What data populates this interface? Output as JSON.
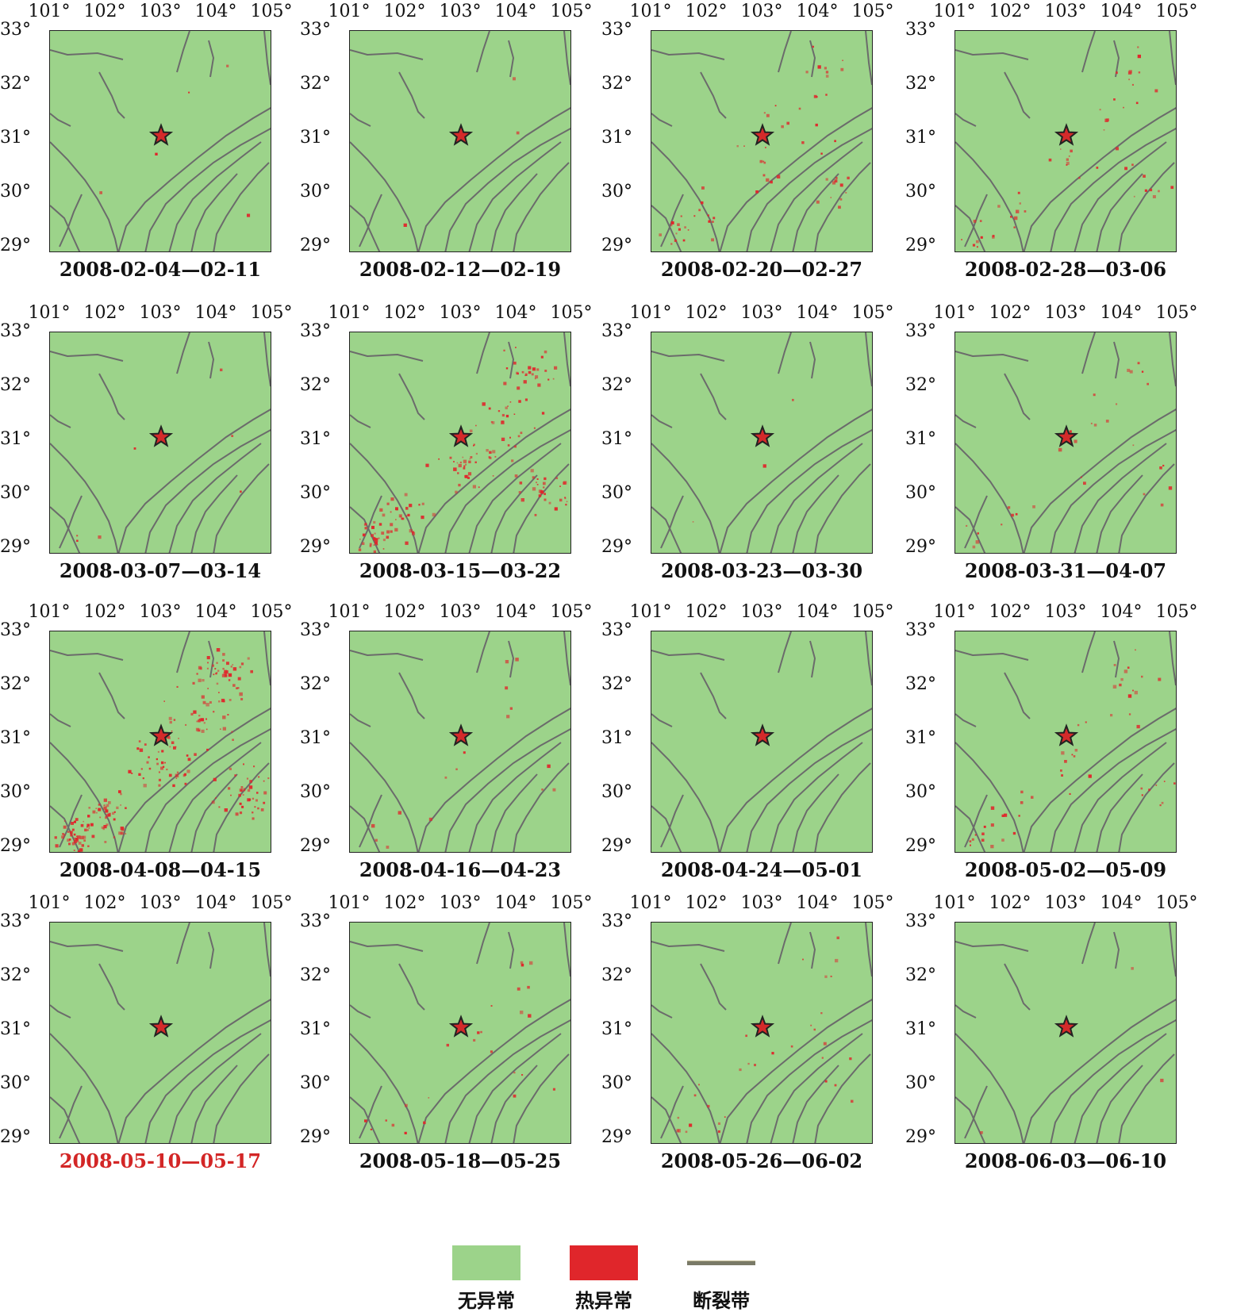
{
  "map_grid": {
    "x_ticks": [
      "101°",
      "102°",
      "103°",
      "104°",
      "105°"
    ],
    "y_ticks": [
      "33°",
      "32°",
      "31°",
      "30°",
      "29°"
    ],
    "panels": [
      {
        "caption": "2008-02-04—02-11",
        "highlight": false,
        "anomaly_level": 0.02
      },
      {
        "caption": "2008-02-12—02-19",
        "highlight": false,
        "anomaly_level": 0.01
      },
      {
        "caption": "2008-02-20—02-27",
        "highlight": false,
        "anomaly_level": 0.25
      },
      {
        "caption": "2008-02-28—03-06",
        "highlight": false,
        "anomaly_level": 0.2
      },
      {
        "caption": "2008-03-07—03-14",
        "highlight": false,
        "anomaly_level": 0.03
      },
      {
        "caption": "2008-03-15—03-22",
        "highlight": false,
        "anomaly_level": 0.7
      },
      {
        "caption": "2008-03-23—03-30",
        "highlight": false,
        "anomaly_level": 0.01
      },
      {
        "caption": "2008-03-31—04-07",
        "highlight": false,
        "anomaly_level": 0.12
      },
      {
        "caption": "2008-04-08—04-15",
        "highlight": false,
        "anomaly_level": 1.0
      },
      {
        "caption": "2008-04-16—04-23",
        "highlight": false,
        "anomaly_level": 0.06
      },
      {
        "caption": "2008-04-24—05-01",
        "highlight": false,
        "anomaly_level": 0.0
      },
      {
        "caption": "2008-05-02—05-09",
        "highlight": false,
        "anomaly_level": 0.2
      },
      {
        "caption": "2008-05-10—05-17",
        "highlight": true,
        "anomaly_level": 0.0
      },
      {
        "caption": "2008-05-18—05-25",
        "highlight": false,
        "anomaly_level": 0.1
      },
      {
        "caption": "2008-05-26—06-02",
        "highlight": false,
        "anomaly_level": 0.12
      },
      {
        "caption": "2008-06-03—06-10",
        "highlight": false,
        "anomaly_level": 0.01
      }
    ]
  },
  "legend": {
    "items": [
      {
        "label": "无异常",
        "color": "#9cd38a"
      },
      {
        "label": "热异常",
        "color": "#e0262b"
      },
      {
        "label": "断裂带",
        "color": "#7a7a68"
      }
    ]
  },
  "colors": {
    "land": "#9cd38a",
    "anomaly": "#e0262b",
    "fault": "#6b6b6b",
    "epicenter": "#d42a2a"
  }
}
